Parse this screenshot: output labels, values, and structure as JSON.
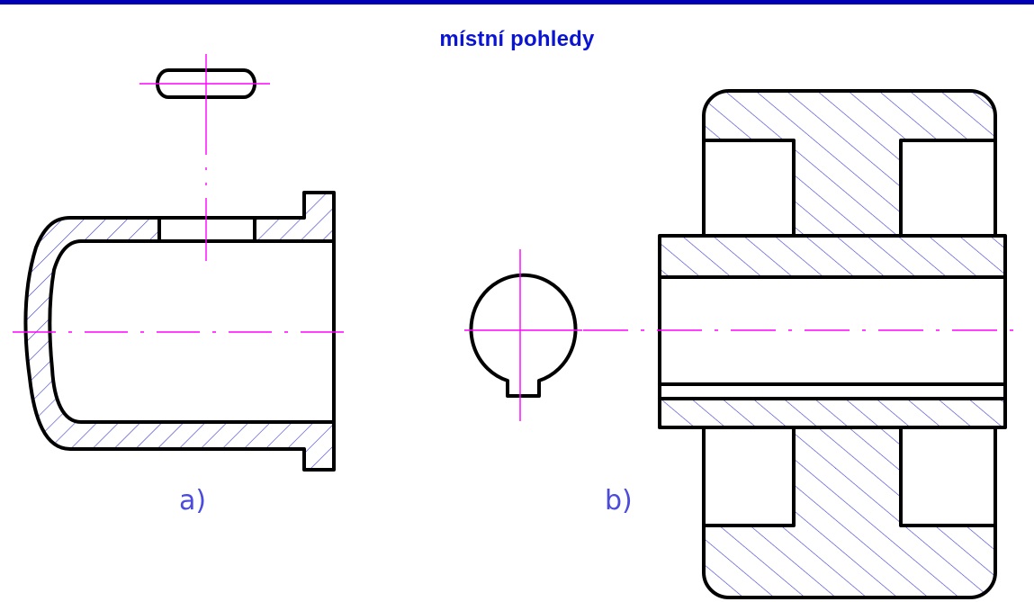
{
  "title": "místní pohledy",
  "labels": {
    "a": "a)",
    "b": "b)"
  },
  "colors": {
    "top_bar": "#0000b4",
    "title": "#0a14d2",
    "outline": "#000000",
    "hatch": "#3a3ad0",
    "centerline": "#ff00ff",
    "label": "#4b4bdc"
  }
}
